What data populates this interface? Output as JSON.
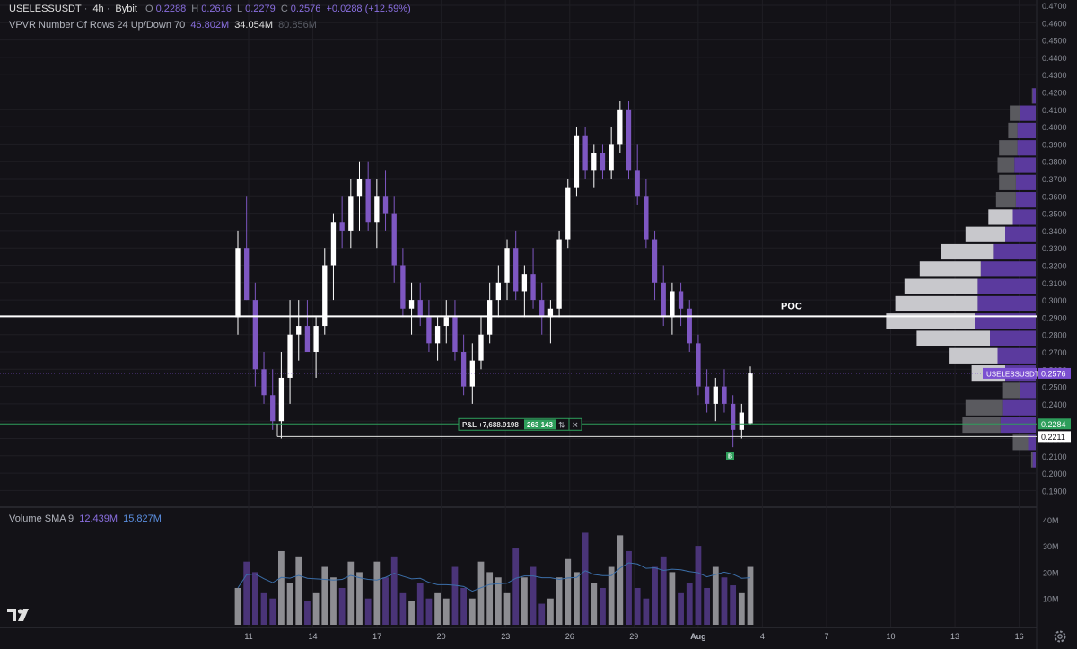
{
  "header": {
    "symbol": "USELESSUSDT",
    "interval": "4h",
    "exchange": "Bybit",
    "o_label": "O",
    "o": "0.2288",
    "h_label": "H",
    "h": "0.2616",
    "l_label": "L",
    "l": "0.2279",
    "c_label": "C",
    "c": "0.2576",
    "change": "+0.0288 (+12.59%)"
  },
  "vpvr": {
    "label": "VPVR Number Of Rows 24 Up/Down 70",
    "up": "46.802M",
    "down": "34.054M",
    "total": "80.856M"
  },
  "volume_legend": {
    "label": "Volume SMA 9",
    "v1": "12.439M",
    "v2": "15.827M"
  },
  "price_axis": [
    "0.4700",
    "0.4600",
    "0.4500",
    "0.4400",
    "0.4300",
    "0.4200",
    "0.4100",
    "0.4000",
    "0.3900",
    "0.3800",
    "0.3700",
    "0.3600",
    "0.3500",
    "0.3400",
    "0.3300",
    "0.3200",
    "0.3100",
    "0.3000",
    "0.2900",
    "0.2800",
    "0.2700",
    "0.2600",
    "0.2500",
    "0.2400",
    "0.2300",
    "0.2200",
    "0.2100",
    "0.2000",
    "0.1900"
  ],
  "volume_axis": [
    "40M",
    "30M",
    "20M",
    "10M"
  ],
  "time_axis": [
    "11",
    "14",
    "17",
    "20",
    "23",
    "26",
    "29",
    "Aug",
    "4",
    "7",
    "10",
    "13",
    "16"
  ],
  "badges": {
    "symbol_label": "USELESSUSDT",
    "last_price": "0.2576",
    "green_line": "0.2284",
    "white_line": "0.2211"
  },
  "poc_label": "POC",
  "position": {
    "pnl": "P&L +7,688.9198",
    "qty": "263 143",
    "reverse_glyph": "⇅",
    "close_glyph": "✕",
    "marker": "B"
  },
  "colors": {
    "background": "#131217",
    "up_candle": "#ffffff",
    "down_candle": "#7e57c2",
    "accent_purple": "#7b4fd1",
    "green": "#2e9e5b",
    "poc_line": "#ffffff"
  },
  "chart_data": {
    "type": "candlestick",
    "price_range": [
      0.185,
      0.47
    ],
    "volume_range": [
      0,
      42
    ],
    "volume_unit": "M",
    "x_range_days": [
      10,
      17
    ],
    "candles": [
      [
        0.29,
        0.34,
        0.28,
        0.33
      ],
      [
        0.33,
        0.36,
        0.3,
        0.3
      ],
      [
        0.3,
        0.31,
        0.25,
        0.26
      ],
      [
        0.26,
        0.27,
        0.24,
        0.245
      ],
      [
        0.245,
        0.26,
        0.225,
        0.23
      ],
      [
        0.23,
        0.27,
        0.22,
        0.255
      ],
      [
        0.255,
        0.3,
        0.24,
        0.28
      ],
      [
        0.28,
        0.3,
        0.265,
        0.285
      ],
      [
        0.285,
        0.3,
        0.27,
        0.27
      ],
      [
        0.27,
        0.29,
        0.255,
        0.285
      ],
      [
        0.285,
        0.33,
        0.28,
        0.32
      ],
      [
        0.32,
        0.35,
        0.3,
        0.345
      ],
      [
        0.345,
        0.36,
        0.33,
        0.34
      ],
      [
        0.34,
        0.37,
        0.33,
        0.36
      ],
      [
        0.36,
        0.38,
        0.34,
        0.37
      ],
      [
        0.37,
        0.38,
        0.34,
        0.345
      ],
      [
        0.345,
        0.37,
        0.33,
        0.36
      ],
      [
        0.36,
        0.375,
        0.34,
        0.35
      ],
      [
        0.35,
        0.36,
        0.31,
        0.32
      ],
      [
        0.32,
        0.33,
        0.29,
        0.295
      ],
      [
        0.295,
        0.31,
        0.28,
        0.3
      ],
      [
        0.3,
        0.31,
        0.285,
        0.29
      ],
      [
        0.29,
        0.3,
        0.27,
        0.275
      ],
      [
        0.275,
        0.29,
        0.265,
        0.285
      ],
      [
        0.285,
        0.3,
        0.275,
        0.29
      ],
      [
        0.29,
        0.3,
        0.265,
        0.27
      ],
      [
        0.27,
        0.28,
        0.245,
        0.25
      ],
      [
        0.25,
        0.275,
        0.24,
        0.265
      ],
      [
        0.265,
        0.29,
        0.26,
        0.28
      ],
      [
        0.28,
        0.31,
        0.275,
        0.3
      ],
      [
        0.3,
        0.32,
        0.29,
        0.31
      ],
      [
        0.31,
        0.335,
        0.3,
        0.33
      ],
      [
        0.33,
        0.34,
        0.3,
        0.305
      ],
      [
        0.305,
        0.32,
        0.29,
        0.315
      ],
      [
        0.315,
        0.33,
        0.295,
        0.3
      ],
      [
        0.3,
        0.31,
        0.28,
        0.29
      ],
      [
        0.29,
        0.3,
        0.275,
        0.295
      ],
      [
        0.295,
        0.34,
        0.29,
        0.335
      ],
      [
        0.335,
        0.37,
        0.33,
        0.365
      ],
      [
        0.365,
        0.4,
        0.36,
        0.395
      ],
      [
        0.395,
        0.4,
        0.37,
        0.375
      ],
      [
        0.375,
        0.39,
        0.365,
        0.385
      ],
      [
        0.385,
        0.39,
        0.37,
        0.375
      ],
      [
        0.375,
        0.4,
        0.37,
        0.39
      ],
      [
        0.39,
        0.415,
        0.385,
        0.41
      ],
      [
        0.41,
        0.415,
        0.37,
        0.375
      ],
      [
        0.375,
        0.39,
        0.355,
        0.36
      ],
      [
        0.36,
        0.37,
        0.33,
        0.335
      ],
      [
        0.335,
        0.34,
        0.3,
        0.31
      ],
      [
        0.31,
        0.32,
        0.285,
        0.29
      ],
      [
        0.29,
        0.31,
        0.28,
        0.305
      ],
      [
        0.305,
        0.31,
        0.285,
        0.295
      ],
      [
        0.295,
        0.3,
        0.27,
        0.275
      ],
      [
        0.275,
        0.28,
        0.245,
        0.25
      ],
      [
        0.25,
        0.26,
        0.235,
        0.24
      ],
      [
        0.24,
        0.255,
        0.23,
        0.25
      ],
      [
        0.25,
        0.26,
        0.235,
        0.24
      ],
      [
        0.24,
        0.245,
        0.215,
        0.225
      ],
      [
        0.225,
        0.24,
        0.22,
        0.235
      ],
      [
        0.2288,
        0.2616,
        0.2279,
        0.2576
      ]
    ],
    "volumes": [
      14,
      24,
      20,
      12,
      10,
      28,
      16,
      26,
      9,
      12,
      22,
      18,
      14,
      24,
      20,
      10,
      24,
      18,
      26,
      12,
      9,
      16,
      10,
      12,
      10,
      22,
      14,
      10,
      24,
      20,
      18,
      12,
      29,
      18,
      22,
      8,
      10,
      18,
      25,
      20,
      35,
      16,
      14,
      22,
      34,
      28,
      14,
      10,
      22,
      26,
      20,
      12,
      16,
      30,
      14,
      22,
      18,
      15,
      12,
      22
    ],
    "volume_profile": [
      {
        "price": 0.4175,
        "up": 2,
        "down": 0.5
      },
      {
        "price": 0.4075,
        "up": 10,
        "down": 7
      },
      {
        "price": 0.3975,
        "up": 12,
        "down": 6
      },
      {
        "price": 0.3875,
        "up": 12,
        "down": 12
      },
      {
        "price": 0.3775,
        "up": 14,
        "down": 11
      },
      {
        "price": 0.3675,
        "up": 13,
        "down": 11
      },
      {
        "price": 0.3575,
        "up": 13,
        "down": 13
      },
      {
        "price": 0.3475,
        "up": 15,
        "down": 16
      },
      {
        "price": 0.3375,
        "up": 20,
        "down": 26
      },
      {
        "price": 0.3275,
        "up": 28,
        "down": 34
      },
      {
        "price": 0.3175,
        "up": 36,
        "down": 40
      },
      {
        "price": 0.3075,
        "up": 38,
        "down": 48
      },
      {
        "price": 0.2975,
        "up": 38,
        "down": 54
      },
      {
        "price": 0.2875,
        "up": 40,
        "down": 58
      },
      {
        "price": 0.2775,
        "up": 30,
        "down": 48
      },
      {
        "price": 0.2675,
        "up": 25,
        "down": 32
      },
      {
        "price": 0.2575,
        "up": 20,
        "down": 22
      },
      {
        "price": 0.2475,
        "up": 10,
        "down": 12
      },
      {
        "price": 0.2375,
        "up": 22,
        "down": 24
      },
      {
        "price": 0.2275,
        "up": 23,
        "down": 25
      },
      {
        "price": 0.2175,
        "up": 5,
        "down": 10
      },
      {
        "price": 0.2075,
        "up": 2,
        "down": 1
      }
    ],
    "poc_price": 0.2905,
    "last_price": 0.2576,
    "green_line": 0.2284,
    "white_line": 0.2211
  }
}
